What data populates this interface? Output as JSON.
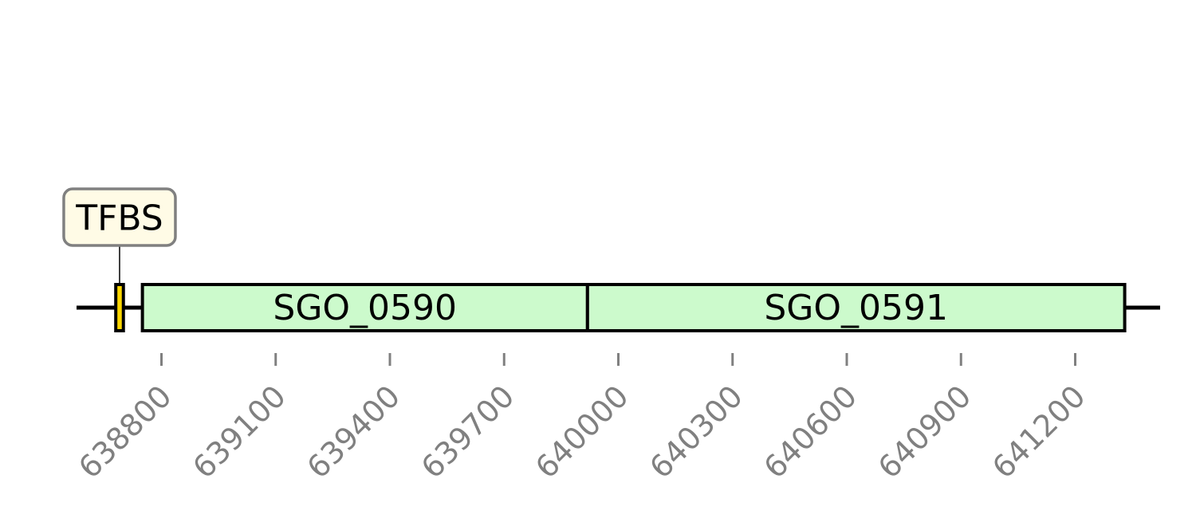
{
  "sequence_map": {
    "axis": {
      "ticks": [
        638800,
        639100,
        639400,
        639700,
        640000,
        640300,
        640600,
        640900,
        641200
      ],
      "tick_labels": [
        "638800",
        "639100",
        "639400",
        "639700",
        "640000",
        "640300",
        "640600",
        "640900",
        "641200"
      ],
      "color": "#808080"
    },
    "features": [
      {
        "id": "tfbs",
        "label": "TFBS",
        "start": 638680,
        "end": 638700,
        "color": "#ffd700",
        "label_style": "callout"
      },
      {
        "id": "sgo-0590",
        "label": "SGO_0590",
        "start": 638750,
        "end": 639919,
        "color": "#ccfacc",
        "label_style": "inline"
      },
      {
        "id": "sgo-0591",
        "label": "SGO_0591",
        "start": 639919,
        "end": 641330,
        "color": "#ccfacc",
        "label_style": "inline"
      }
    ]
  }
}
